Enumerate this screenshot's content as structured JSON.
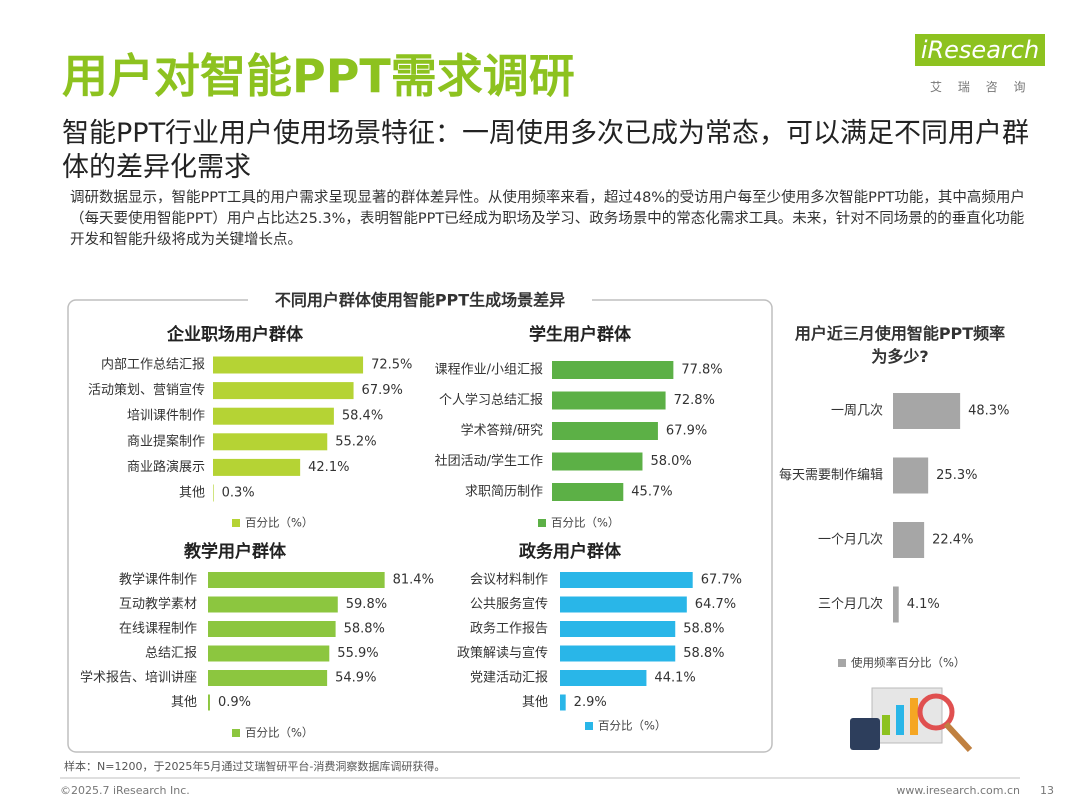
{
  "page": {
    "title": "用户对智能PPT需求调研",
    "subtitle": "智能PPT行业用户使用场景特征：一周使用多次已成为常态，可以满足不同用户群体的差异化需求",
    "body": "调研数据显示，智能PPT工具的用户需求呈现显著的群体差异性。从使用频率来看，超过48%的受访用户每至少使用多次智能PPT功能，其中高频用户（每天要使用智能PPT）用户占比达25.3%，表明智能PPT已经成为职场及学习、政务场景中的常态化需求工具。未来，针对不同场景的的垂直化功能开发和智能升级将成为关键增长点。",
    "logo": "iResearch",
    "logo_sub": "艾 瑞 咨 询",
    "panel_title": "不同用户群体使用智能PPT生成场景差异",
    "source": "样本：N=1200，于2025年5月通过艾瑞智研平台-消费洞察数据库调研获得。",
    "copyright": "©2025.7 iResearch Inc.",
    "url": "www.iresearch.com.cn",
    "page_number": "13"
  },
  "chart_data": [
    {
      "type": "bar",
      "orientation": "horizontal",
      "title": "企业职场用户群体",
      "categories": [
        "内部工作总结汇报",
        "活动策划、营销宣传",
        "培训课件制作",
        "商业提案制作",
        "商业路演展示",
        "其他"
      ],
      "series": [
        {
          "name": "百分比（%）",
          "color": "#b5d334",
          "values": [
            72.5,
            67.9,
            58.4,
            55.2,
            42.1,
            0.3
          ],
          "value_labels": [
            "72.5%",
            "67.9%",
            "58.4%",
            "55.2%",
            "42.1%",
            "0.3%"
          ]
        }
      ]
    },
    {
      "type": "bar",
      "orientation": "horizontal",
      "title": "学生用户群体",
      "categories": [
        "课程作业/小组汇报",
        "个人学习总结汇报",
        "学术答辩/研究",
        "社团活动/学生工作",
        "求职简历制作"
      ],
      "series": [
        {
          "name": "百分比（%）",
          "color": "#5cb046",
          "values": [
            77.8,
            72.8,
            67.9,
            58.0,
            45.7
          ],
          "value_labels": [
            "77.8%",
            "72.8%",
            "67.9%",
            "58.0%",
            "45.7%"
          ]
        }
      ]
    },
    {
      "type": "bar",
      "orientation": "horizontal",
      "title": "教学用户群体",
      "categories": [
        "教学课件制作",
        "互动教学素材",
        "在线课程制作",
        "总结汇报",
        "学术报告、培训讲座",
        "其他"
      ],
      "series": [
        {
          "name": "百分比（%）",
          "color": "#8cc63f",
          "values": [
            81.4,
            59.8,
            58.8,
            55.9,
            54.9,
            0.9
          ],
          "value_labels": [
            "81.4%",
            "59.8%",
            "58.8%",
            "55.9%",
            "54.9%",
            "0.9%"
          ]
        }
      ]
    },
    {
      "type": "bar",
      "orientation": "horizontal",
      "title": "政务用户群体",
      "categories": [
        "会议材料制作",
        "公共服务宣传",
        "政务工作报告",
        "政策解读与宣传",
        "党建活动汇报",
        "其他"
      ],
      "series": [
        {
          "name": "百分比（%）",
          "color": "#29b6e8",
          "values": [
            67.7,
            64.7,
            58.8,
            58.8,
            44.1,
            2.9
          ],
          "value_labels": [
            "67.7%",
            "64.7%",
            "58.8%",
            "58.8%",
            "44.1%",
            "2.9%"
          ]
        }
      ]
    },
    {
      "type": "bar",
      "orientation": "horizontal",
      "title": "用户近三月使用智能PPT频率为多少?",
      "categories": [
        "一周几次",
        "每天需要制作编辑",
        "一个月几次",
        "三个月几次"
      ],
      "series": [
        {
          "name": "使用频率百分比（%）",
          "color": "#a6a6a6",
          "values": [
            48.3,
            25.3,
            22.4,
            4.1
          ],
          "value_labels": [
            "48.3%",
            "25.3%",
            "22.4%",
            "4.1%"
          ]
        }
      ]
    }
  ]
}
